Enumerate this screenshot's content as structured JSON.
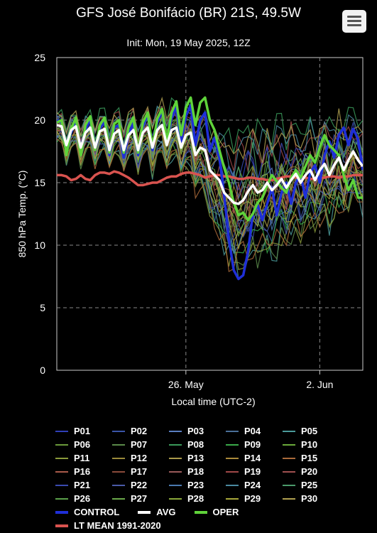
{
  "header": {
    "title": "GFS José Bonifácio (BR) 21S, 49.5W",
    "subtitle": "Init: Mon, 19 May 2025, 12Z",
    "menu_icon": "hamburger-menu-icon"
  },
  "chart_data": {
    "type": "line",
    "title": "GFS José Bonifácio (BR) 21S, 49.5W",
    "subtitle": "Init: Mon, 19 May 2025, 12Z",
    "xlabel": "Local time (UTC-2)",
    "ylabel": "850 hPa Temp. (°C)",
    "ylim": [
      0,
      25
    ],
    "yticks": [
      0,
      5,
      10,
      15,
      20,
      25
    ],
    "x_range_hours_from_init": [
      0,
      384
    ],
    "x_ticks": [
      {
        "label": "26. May",
        "hour": 162
      },
      {
        "label": "2. Jun",
        "hour": 330
      }
    ],
    "time_step_hours": 6,
    "grid": true,
    "legend_placement": "bottom",
    "series": [
      {
        "name": "CONTROL",
        "color": "#1f2fd8",
        "width": 3.5,
        "values": [
          20,
          19.8,
          17.5,
          19,
          20,
          17.3,
          19.2,
          20.1,
          17.6,
          19.3,
          19.9,
          17.2,
          19.4,
          19.6,
          17.0,
          18.8,
          19.8,
          17.2,
          19.5,
          20.5,
          17.6,
          19.8,
          20.8,
          18,
          20.2,
          21,
          18.3,
          20.3,
          21.2,
          18,
          20,
          20.6,
          17.5,
          18.6,
          17,
          14,
          10.5,
          8,
          7.3,
          7.6,
          9.5,
          12.5,
          13.2,
          12,
          13.3,
          14.6,
          12.4,
          14.2,
          15,
          13.3,
          15,
          15.6,
          13.8,
          15.8,
          16.4,
          15,
          17.2,
          18.3,
          17,
          18.8,
          19.4,
          18,
          19.3,
          18.5,
          16
        ]
      },
      {
        "name": "AVG",
        "color": "#ffffff",
        "width": 3.5,
        "values": [
          19.6,
          19.5,
          18,
          19.2,
          19.5,
          17.8,
          19,
          19.4,
          17.8,
          19.1,
          19.3,
          17.6,
          18.9,
          19.2,
          17.6,
          18.8,
          19.2,
          17.6,
          19,
          19.4,
          17.8,
          19.2,
          19.6,
          18,
          19.2,
          19.4,
          17.8,
          18.8,
          19,
          17.2,
          17.8,
          17.6,
          16,
          15.6,
          15.2,
          14.2,
          13.8,
          13.4,
          13.3,
          13.6,
          14.3,
          14.8,
          14.2,
          14.4,
          15,
          14.4,
          14.8,
          15.3,
          14.6,
          15.2,
          15.7,
          15,
          15.6,
          16,
          15.2,
          16,
          16.5,
          15.6,
          16.4,
          17,
          16,
          16.8,
          17.5,
          16.8,
          16.3
        ]
      },
      {
        "name": "OPER",
        "color": "#5fd33a",
        "width": 3.5,
        "values": [
          19.8,
          20,
          17.2,
          19.3,
          20.2,
          17.2,
          19.6,
          20.3,
          17.6,
          19.6,
          20.2,
          17.4,
          19.7,
          20,
          17.4,
          19.4,
          20.2,
          17.4,
          19.8,
          20.6,
          17.8,
          20.1,
          20.9,
          18.3,
          20.6,
          21.5,
          18.8,
          21,
          21.8,
          19.6,
          21.4,
          21.8,
          20,
          19.2,
          17.6,
          16.2,
          15,
          13.4,
          12.4,
          12.6,
          12,
          12.5,
          13.4,
          13.8,
          14.8,
          15.6,
          15.1,
          14.6,
          14.2,
          15.4,
          16,
          15.4,
          16.3,
          17.2,
          16.6,
          17.8,
          18.8,
          18,
          17.6,
          17.2,
          15.6,
          14.4,
          15.2,
          13.8,
          13.8
        ]
      },
      {
        "name": "LT MEAN 1991-2020",
        "color": "#d9534f",
        "width": 3.5,
        "values": [
          15.6,
          15.6,
          15.5,
          15.2,
          15.3,
          15.6,
          15.3,
          15.2,
          15.6,
          15.8,
          15.8,
          15.7,
          15.9,
          15.8,
          15.6,
          15.4,
          15.1,
          14.8,
          14.8,
          14.9,
          15,
          15,
          15.2,
          15.4,
          15.5,
          15.5,
          15.7,
          15.8,
          15.8,
          15.7,
          15.6,
          15.4,
          15.5,
          15.6,
          15.6,
          15.5,
          15.5,
          15.4,
          15.3,
          15.3,
          15.4,
          15.4,
          15.3,
          15.3,
          15.2,
          15.2,
          15.3,
          15.4,
          15.5,
          15.5,
          15.4,
          15.5,
          15.4,
          15.3,
          15.3,
          15.4,
          15.4,
          15.5,
          15.5,
          15.4,
          15.5,
          15.5,
          15.6,
          15.6,
          15.6
        ]
      }
    ],
    "ensemble_members": [
      "P01",
      "P02",
      "P03",
      "P04",
      "P05",
      "P06",
      "P07",
      "P08",
      "P09",
      "P10",
      "P11",
      "P12",
      "P13",
      "P14",
      "P15",
      "P16",
      "P17",
      "P18",
      "P19",
      "P20",
      "P21",
      "P22",
      "P23",
      "P24",
      "P25",
      "P26",
      "P27",
      "P28",
      "P29",
      "P30"
    ],
    "ensemble_colors": [
      "#3040b8",
      "#3a55a8",
      "#5a7fc0",
      "#4a6f98",
      "#4a9a9a",
      "#6a9a3a",
      "#5a8a4a",
      "#3a9a5a",
      "#3aaa4a",
      "#6aaa3a",
      "#8a9a3a",
      "#9a8a3a",
      "#aa9a4a",
      "#aa8a3a",
      "#aa6a3a",
      "#aa5a4a",
      "#8a4a3a",
      "#9a5a5a",
      "#a04848",
      "#a05050",
      "#3a4ab0",
      "#4a5aa8",
      "#4a7ab0",
      "#4a8aa0",
      "#4a9a6a",
      "#5aa04a",
      "#6aa84a",
      "#8aa83a",
      "#a8a83a",
      "#b0a050"
    ],
    "ensemble_band": {
      "description_values_only": true,
      "center": [
        19.6,
        19.5,
        18,
        19.2,
        19.5,
        17.8,
        19,
        19.4,
        17.8,
        19.1,
        19.3,
        17.6,
        18.9,
        19.2,
        17.6,
        18.8,
        19.2,
        17.6,
        19,
        19.4,
        17.8,
        19.2,
        19.6,
        18,
        19.2,
        19.4,
        17.8,
        18.8,
        19,
        17.2,
        17.8,
        17.6,
        16,
        15.6,
        15.2,
        14.2,
        13.8,
        13.4,
        13.3,
        13.6,
        14.3,
        14.8,
        14.2,
        14.4,
        15,
        14.4,
        14.8,
        15.3,
        14.6,
        15.2,
        15.7,
        15,
        15.6,
        16,
        15.2,
        16,
        16.5,
        15.6,
        16.4,
        17,
        16,
        16.8,
        17.5,
        16.8,
        16.3
      ],
      "spread": [
        1.5,
        1.5,
        1.6,
        1.6,
        1.6,
        1.7,
        1.7,
        1.7,
        1.8,
        1.8,
        1.8,
        1.9,
        1.9,
        1.9,
        2,
        2,
        2.1,
        2.1,
        2.2,
        2.2,
        2.3,
        2.3,
        2.4,
        2.4,
        2.5,
        2.6,
        2.7,
        2.8,
        3,
        3.2,
        3.5,
        3.8,
        4.2,
        4.6,
        5,
        5.4,
        5.8,
        6,
        6.2,
        6.2,
        6.2,
        6.1,
        6,
        5.9,
        5.8,
        5.7,
        5.6,
        5.5,
        5.4,
        5.3,
        5.2,
        5.1,
        5,
        4.9,
        4.8,
        4.7,
        4.6,
        4.5,
        4.4,
        4.3,
        4.2,
        4.1,
        4,
        3.9,
        3.8
      ]
    }
  },
  "legend": {
    "members": [
      "P01",
      "P02",
      "P03",
      "P04",
      "P05",
      "P06",
      "P07",
      "P08",
      "P09",
      "P10",
      "P11",
      "P12",
      "P13",
      "P14",
      "P15",
      "P16",
      "P17",
      "P18",
      "P19",
      "P20",
      "P21",
      "P22",
      "P23",
      "P24",
      "P25",
      "P26",
      "P27",
      "P28",
      "P29",
      "P30"
    ],
    "control": "CONTROL",
    "avg": "AVG",
    "oper": "OPER",
    "ltmean": "LT MEAN 1991-2020"
  }
}
